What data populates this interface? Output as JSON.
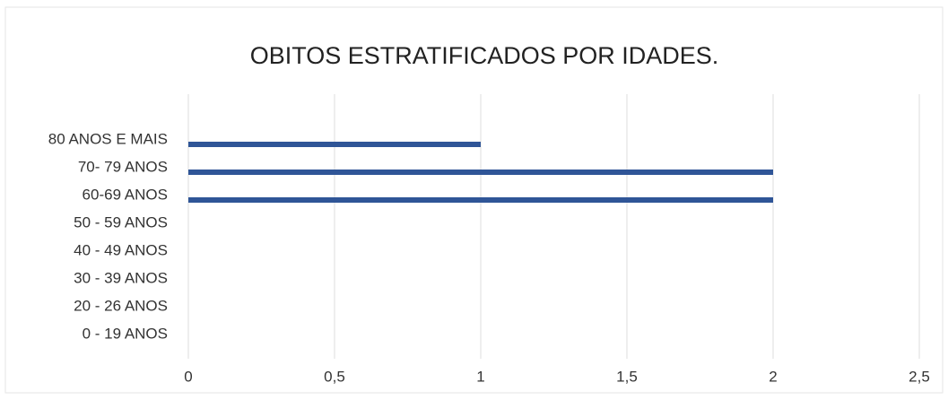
{
  "chart_data": {
    "type": "bar",
    "orientation": "horizontal",
    "title": "OBITOS ESTRATIFICADOS POR IDADES.",
    "categories": [
      "80 ANOS E MAIS",
      "70- 79 ANOS",
      "60-69 ANOS",
      "50 - 59 ANOS",
      "40 - 49 ANOS",
      "30 - 39 ANOS",
      "20 - 26 ANOS",
      "0 - 19 ANOS"
    ],
    "values": [
      1,
      2,
      2,
      0,
      0,
      0,
      0,
      0
    ],
    "color": "#2f5597",
    "xlim": [
      0,
      2.5
    ],
    "xticks": [
      0,
      {
        "value": 0.5,
        "label": "0,5"
      },
      1,
      {
        "value": 1.5,
        "label": "1,5"
      },
      2,
      {
        "value": 2.5,
        "label": "2,5"
      }
    ],
    "grid": true
  }
}
